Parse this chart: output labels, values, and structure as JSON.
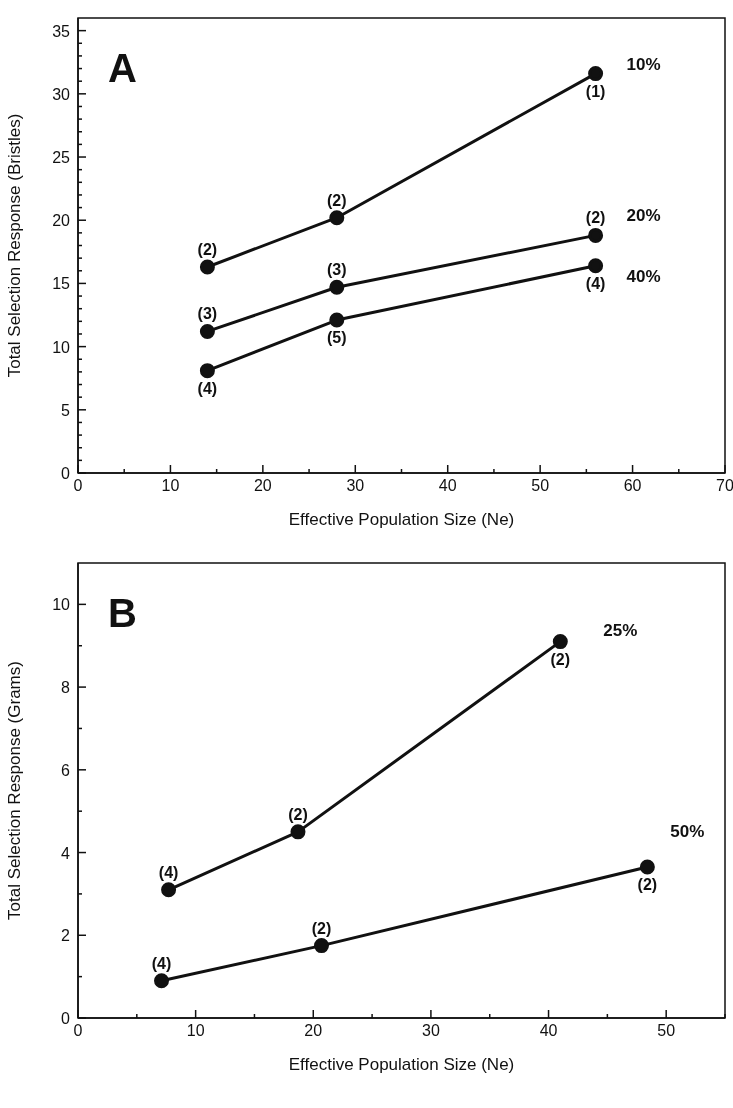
{
  "chart_data": [
    {
      "type": "line",
      "title": "A",
      "xlabel": "Effective Population Size (Ne)",
      "ylabel": "Total Selection Response (Bristles)",
      "xlim": [
        0,
        70
      ],
      "ylim": [
        0,
        36
      ],
      "marker": "circle",
      "line_style": "solid",
      "xticks": [
        0,
        {
          "value": 5,
          "label": null
        },
        10,
        {
          "value": 15,
          "label": null
        },
        20,
        {
          "value": 25,
          "label": null
        },
        30,
        {
          "value": 35,
          "label": null
        },
        40,
        {
          "value": 45,
          "label": null
        },
        50,
        {
          "value": 55,
          "label": null
        },
        60,
        {
          "value": 65,
          "label": null
        },
        70
      ],
      "yticks": [
        0,
        {
          "value": 1,
          "label": null
        },
        {
          "value": 2,
          "label": null
        },
        {
          "value": 3,
          "label": null
        },
        {
          "value": 4,
          "label": null
        },
        5,
        {
          "value": 6,
          "label": null
        },
        {
          "value": 7,
          "label": null
        },
        {
          "value": 8,
          "label": null
        },
        {
          "value": 9,
          "label": null
        },
        10,
        {
          "value": 11,
          "label": null
        },
        {
          "value": 12,
          "label": null
        },
        {
          "value": 13,
          "label": null
        },
        {
          "value": 14,
          "label": null
        },
        15,
        {
          "value": 16,
          "label": null
        },
        {
          "value": 17,
          "label": null
        },
        {
          "value": 18,
          "label": null
        },
        {
          "value": 19,
          "label": null
        },
        20,
        {
          "value": 21,
          "label": null
        },
        {
          "value": 22,
          "label": null
        },
        {
          "value": 23,
          "label": null
        },
        {
          "value": 24,
          "label": null
        },
        25,
        {
          "value": 26,
          "label": null
        },
        {
          "value": 27,
          "label": null
        },
        {
          "value": 28,
          "label": null
        },
        {
          "value": 29,
          "label": null
        },
        30,
        {
          "value": 31,
          "label": null
        },
        {
          "value": 32,
          "label": null
        },
        {
          "value": 33,
          "label": null
        },
        {
          "value": 34,
          "label": null
        },
        35
      ],
      "series": [
        {
          "name": "10%",
          "color": "#111111",
          "x": [
            14,
            28,
            56
          ],
          "values": [
            16.3,
            20.2,
            31.6
          ]
        },
        {
          "name": "20%",
          "color": "#111111",
          "x": [
            14,
            28,
            56
          ],
          "values": [
            11.2,
            14.7,
            18.8
          ]
        },
        {
          "name": "40%",
          "color": "#111111",
          "x": [
            14,
            28,
            56
          ],
          "values": [
            8.1,
            12.1,
            16.4
          ]
        }
      ],
      "annotations": [
        {
          "text": "(2)",
          "x": 14,
          "y": 16.3
        },
        {
          "text": "(2)",
          "x": 28,
          "y": 20.2
        },
        {
          "text": "(1)",
          "x": 56,
          "y": 31.6
        },
        {
          "text": "(3)",
          "x": 14,
          "y": 11.2
        },
        {
          "text": "(3)",
          "x": 28,
          "y": 14.7
        },
        {
          "text": "(2)",
          "x": 56,
          "y": 18.8
        },
        {
          "text": "(4)",
          "x": 14,
          "y": 8.1
        },
        {
          "text": "(5)",
          "x": 28,
          "y": 12.1
        },
        {
          "text": "(4)",
          "x": 56,
          "y": 16.4
        }
      ]
    },
    {
      "type": "line",
      "title": "B",
      "xlabel": "Effective Population Size (Ne)",
      "ylabel": "Total Selection Response (Grams)",
      "xlim": [
        0,
        55
      ],
      "ylim": [
        0,
        11
      ],
      "xticks": [
        0,
        {
          "value": 5,
          "label": null
        },
        10,
        {
          "value": 15,
          "label": null
        },
        20,
        {
          "value": 25,
          "label": null
        },
        30,
        {
          "value": 35,
          "label": null
        },
        40,
        {
          "value": 45,
          "label": null
        },
        50,
        {
          "value": 55,
          "label": null
        }
      ],
      "yticks": [
        0,
        {
          "value": 1,
          "label": null
        },
        2,
        {
          "value": 3,
          "label": null
        },
        4,
        {
          "value": 5,
          "label": null
        },
        6,
        {
          "value": 7,
          "label": null
        },
        8,
        {
          "value": 9,
          "label": null
        },
        10
      ],
      "marker": "circle",
      "line_style": "solid",
      "series": [
        {
          "name": "25%",
          "color": "#111111",
          "x": [
            7.7,
            18.7,
            41
          ],
          "values": [
            3.1,
            4.5,
            9.1
          ]
        },
        {
          "name": "50%",
          "color": "#111111",
          "x": [
            7.1,
            20.7,
            48.4
          ],
          "values": [
            0.9,
            1.75,
            3.65
          ]
        }
      ],
      "annotations": [
        {
          "text": "(4)",
          "x": 7.7,
          "y": 3.1
        },
        {
          "text": "(2)",
          "x": 18.7,
          "y": 4.5
        },
        {
          "text": "(2)",
          "x": 41,
          "y": 9.1
        },
        {
          "text": "(4)",
          "x": 7.1,
          "y": 0.9
        },
        {
          "text": "(2)",
          "x": 20.7,
          "y": 1.75
        },
        {
          "text": "(2)",
          "x": 48.4,
          "y": 3.65
        }
      ]
    }
  ]
}
